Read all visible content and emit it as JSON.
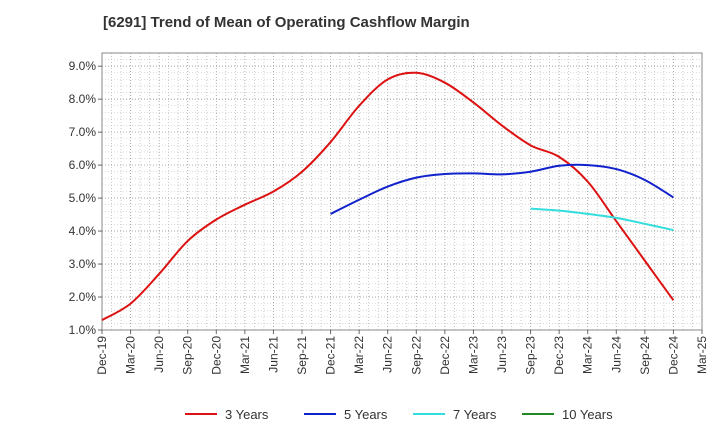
{
  "chart_data": {
    "type": "line",
    "title": "[6291]  Trend of Mean of Operating Cashflow Margin",
    "xlabel": "",
    "ylabel": "",
    "x_ticks": [
      "Dec-19",
      "Mar-20",
      "Jun-20",
      "Sep-20",
      "Dec-20",
      "Mar-21",
      "Jun-21",
      "Sep-21",
      "Dec-21",
      "Mar-22",
      "Jun-22",
      "Sep-22",
      "Dec-22",
      "Mar-23",
      "Jun-23",
      "Sep-23",
      "Dec-23",
      "Mar-24",
      "Jun-24",
      "Sep-24",
      "Dec-24",
      "Mar-25"
    ],
    "y_ticks": [
      "1.0%",
      "2.0%",
      "3.0%",
      "4.0%",
      "5.0%",
      "6.0%",
      "7.0%",
      "8.0%",
      "9.0%"
    ],
    "ylim": [
      1.0,
      9.4
    ],
    "y_unit": "%",
    "grid": true,
    "legend_position": "bottom",
    "series": [
      {
        "name": "3 Years",
        "color": "#dd1111",
        "x": [
          "Dec-19",
          "Mar-20",
          "Jun-20",
          "Sep-20",
          "Dec-20",
          "Mar-21",
          "Jun-21",
          "Sep-21",
          "Dec-21",
          "Mar-22",
          "Jun-22",
          "Sep-22",
          "Dec-22",
          "Mar-23",
          "Jun-23",
          "Sep-23",
          "Dec-23",
          "Mar-24",
          "Jun-24",
          "Sep-24",
          "Dec-24"
        ],
        "values": [
          1.3,
          1.8,
          2.7,
          3.7,
          4.35,
          4.8,
          5.2,
          5.8,
          6.7,
          7.8,
          8.6,
          8.8,
          8.5,
          7.9,
          7.2,
          6.6,
          6.25,
          5.5,
          4.3,
          3.1,
          1.9
        ]
      },
      {
        "name": "5 Years",
        "color": "#1122cc",
        "x": [
          "Dec-21",
          "Mar-22",
          "Jun-22",
          "Sep-22",
          "Dec-22",
          "Mar-23",
          "Jun-23",
          "Sep-23",
          "Dec-23",
          "Mar-24",
          "Jun-24",
          "Sep-24",
          "Dec-24"
        ],
        "values": [
          4.52,
          4.95,
          5.35,
          5.62,
          5.73,
          5.75,
          5.72,
          5.8,
          5.98,
          6.0,
          5.88,
          5.55,
          5.02
        ]
      },
      {
        "name": "7 Years",
        "color": "#33dddd",
        "x": [
          "Sep-23",
          "Dec-23",
          "Mar-24",
          "Jun-24",
          "Sep-24",
          "Dec-24"
        ],
        "values": [
          4.68,
          4.62,
          4.52,
          4.4,
          4.22,
          4.03
        ]
      },
      {
        "name": "10 Years",
        "color": "#228822",
        "x": [],
        "values": []
      }
    ]
  }
}
